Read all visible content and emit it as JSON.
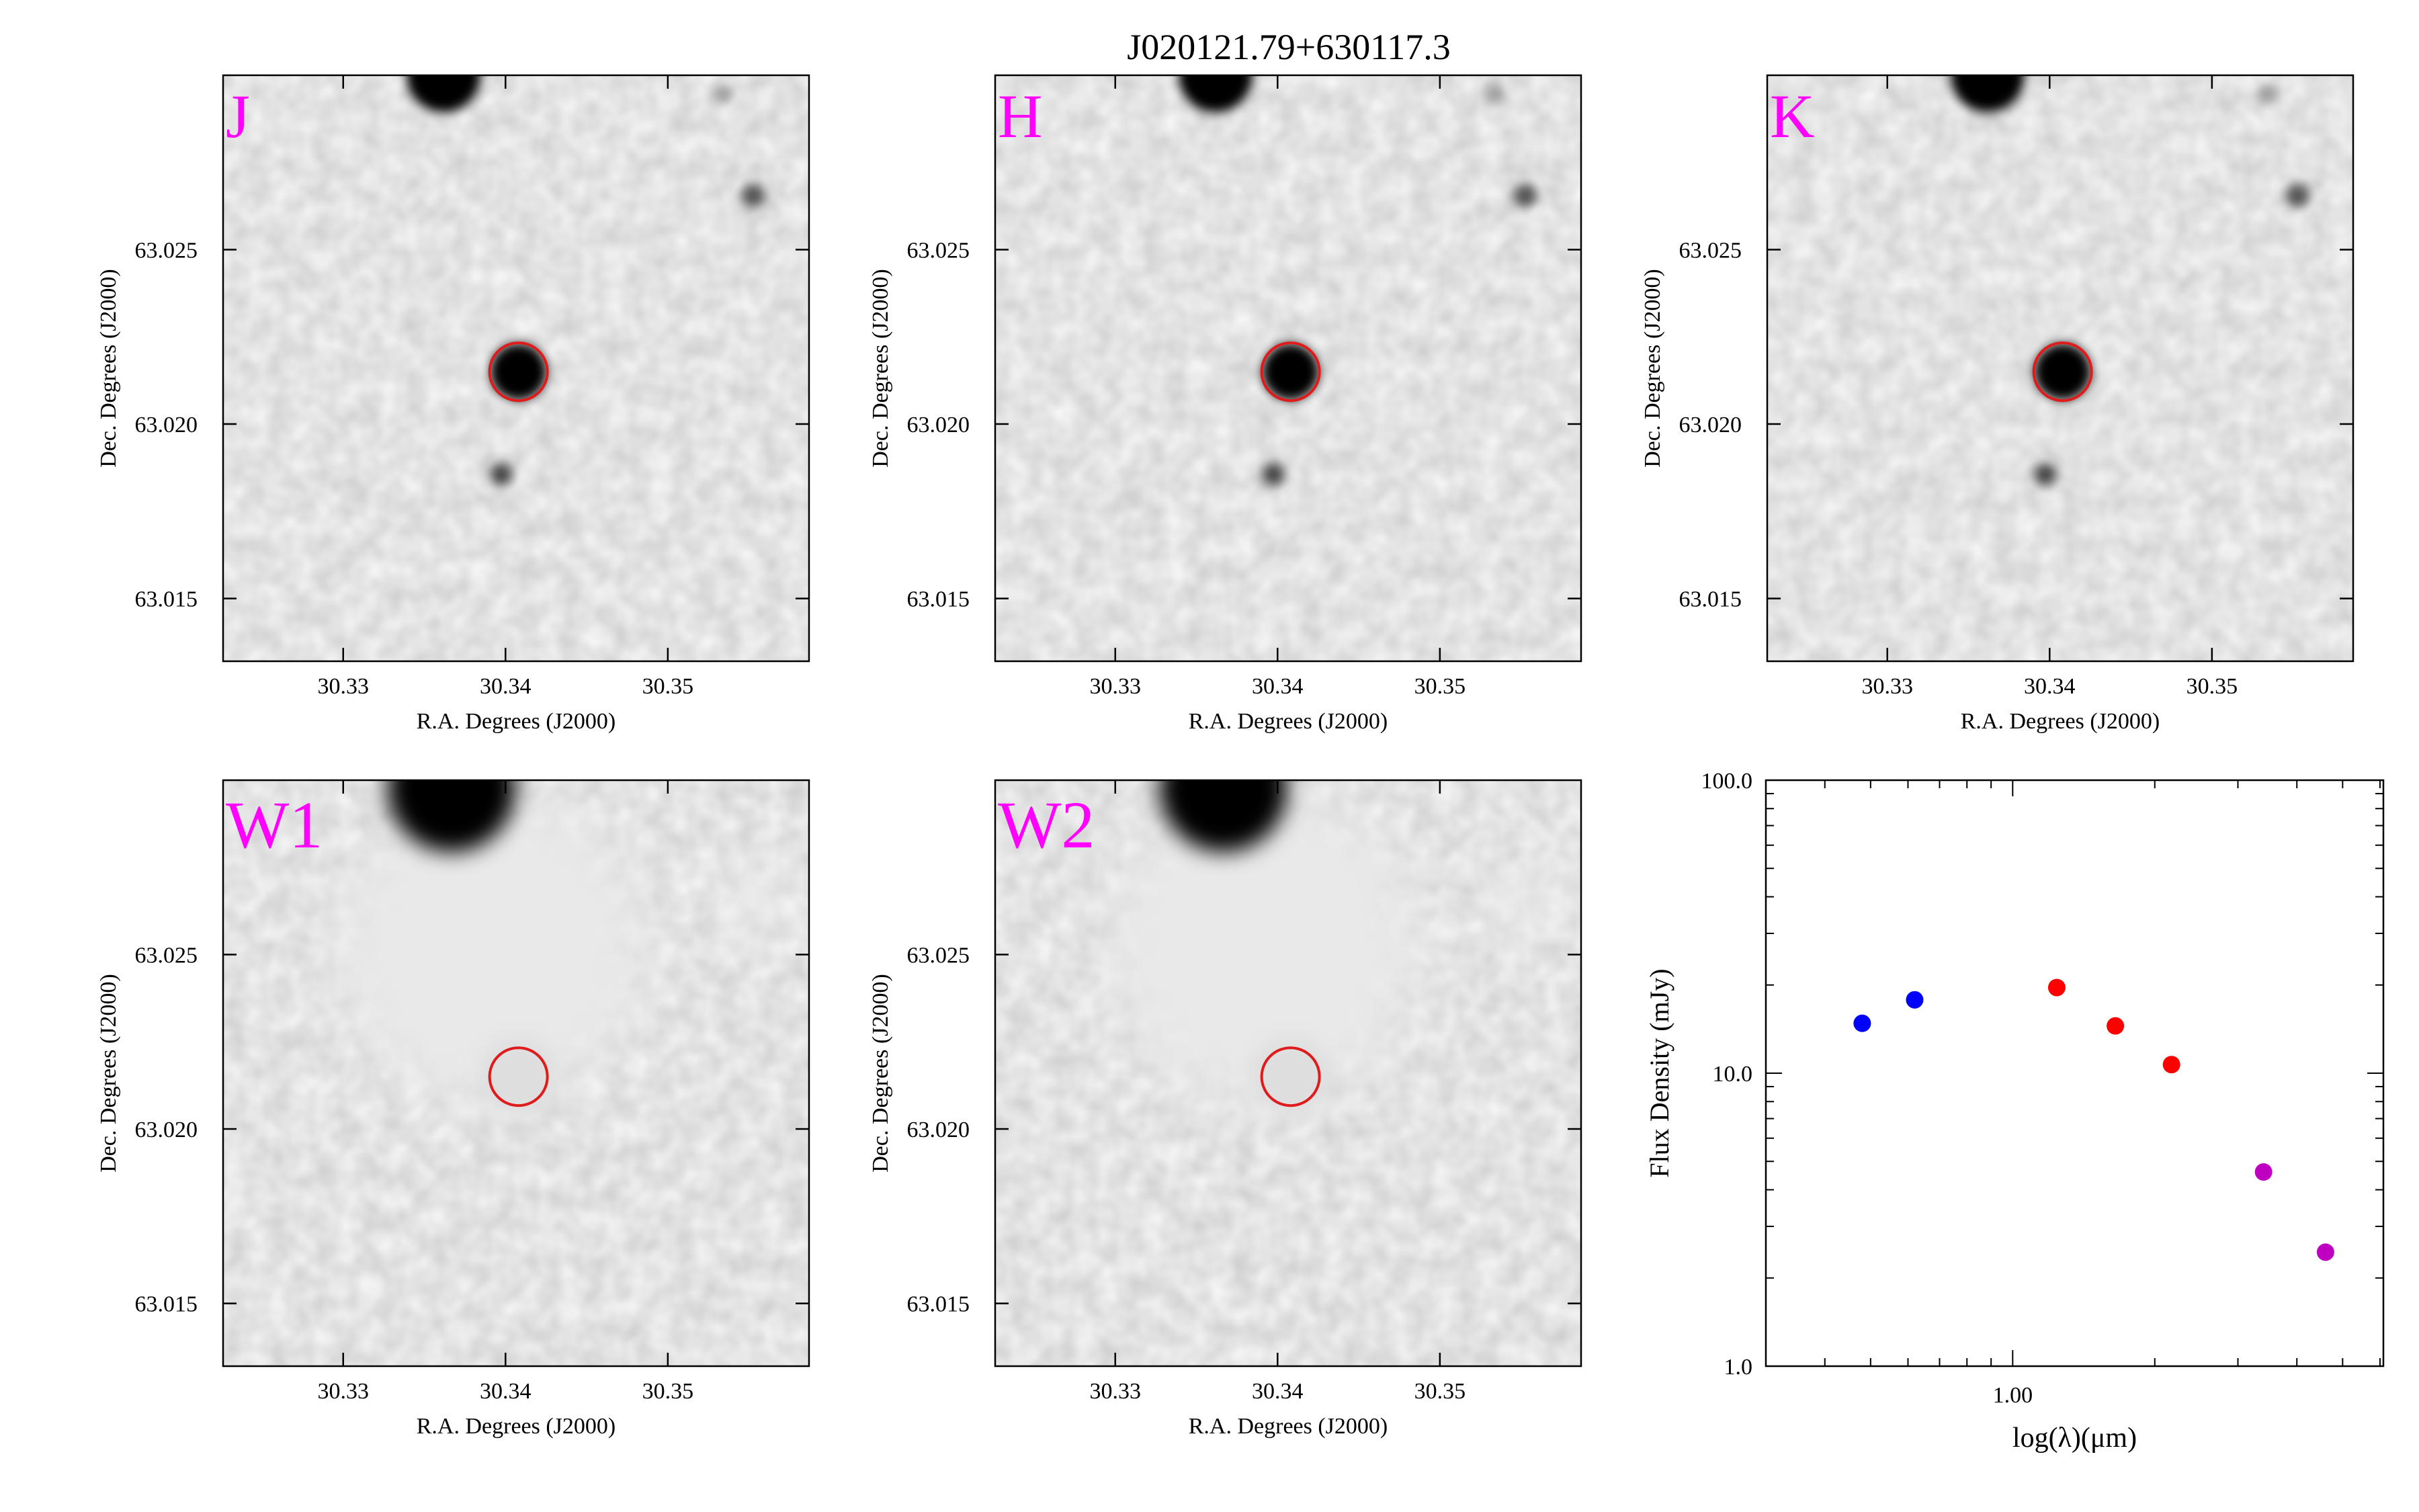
{
  "figure_title": "J020121.79+630117.3",
  "image_axes": {
    "xlabel": "R.A. Degrees (J2000)",
    "ylabel": "Dec. Degrees (J2000)",
    "xlim": [
      30.3226,
      30.3587
    ],
    "ylim": [
      63.0132,
      63.03
    ],
    "xticks": [
      "30.33",
      "30.34",
      "30.35"
    ],
    "yticks": [
      "63.015",
      "63.020",
      "63.025"
    ],
    "band_label_color": "#ff00ff",
    "aperture_color": "#e01b1b",
    "target": {
      "ra": 30.3408,
      "dec": 63.0215
    }
  },
  "panels": [
    {
      "band": "J",
      "kind": "2mass"
    },
    {
      "band": "H",
      "kind": "2mass"
    },
    {
      "band": "K",
      "kind": "2mass"
    },
    {
      "band": "W1",
      "kind": "wise"
    },
    {
      "band": "W2",
      "kind": "wise"
    }
  ],
  "chart_data": {
    "type": "scatter",
    "title": "",
    "xlabel": "log(λ)(μm)",
    "ylabel": "Flux Density (mJy)",
    "xscale": "log",
    "yscale": "log",
    "xlim": [
      0.3,
      6.1
    ],
    "ylim": [
      1.0,
      100.0
    ],
    "xtick_labels": [
      "1.00"
    ],
    "ytick_labels": [
      "1.0",
      "10.0",
      "100.0"
    ],
    "grid": false,
    "series": [
      {
        "color": "#0000ff",
        "points": [
          {
            "x": 0.48,
            "y": 14.8
          },
          {
            "x": 0.62,
            "y": 17.8
          }
        ]
      },
      {
        "color": "#ff0000",
        "points": [
          {
            "x": 1.24,
            "y": 19.6
          },
          {
            "x": 1.65,
            "y": 14.5
          },
          {
            "x": 2.17,
            "y": 10.7
          }
        ]
      },
      {
        "color": "#c000c0",
        "points": [
          {
            "x": 3.4,
            "y": 4.6
          },
          {
            "x": 4.6,
            "y": 2.45
          }
        ]
      }
    ]
  }
}
